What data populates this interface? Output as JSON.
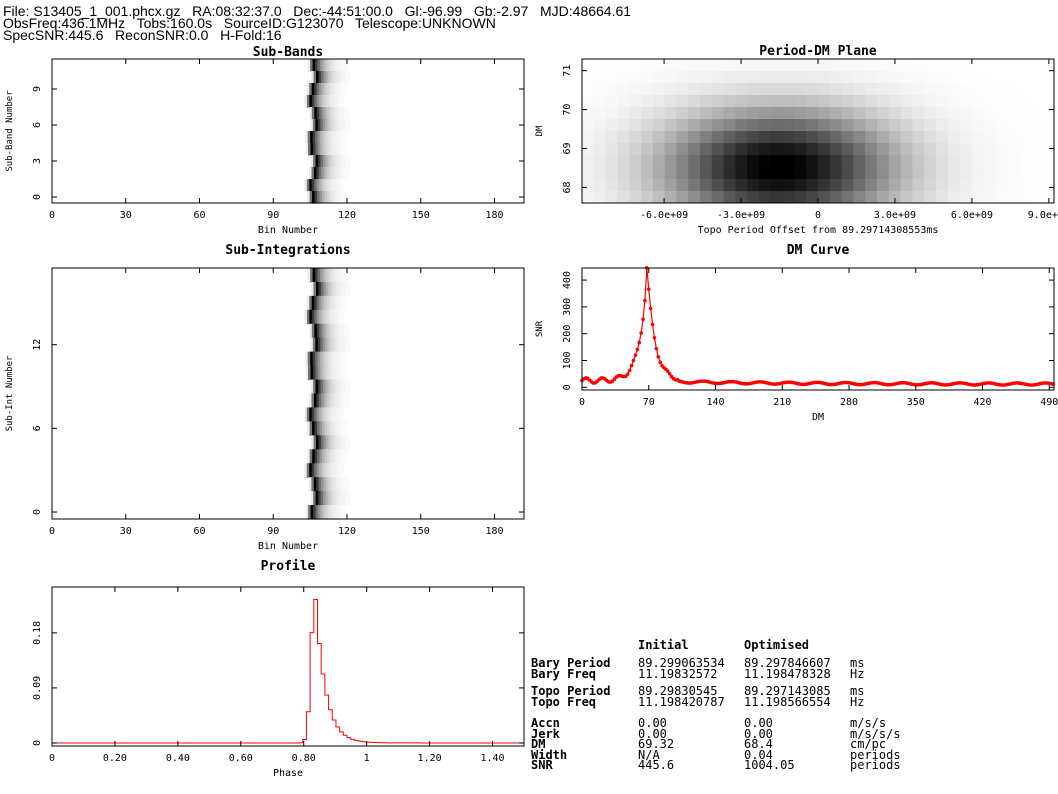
{
  "header": {
    "line1": "File: S13405_1_001.phcx.gz   RA:08:32:37.0   Dec:-44:51:00.0   Gl:-96.99   Gb:-2.97   MJD:48664.61",
    "line2": "ObsFreq:436.1MHz   Tobs:160.0s   SourceID:G123070   Telescope:UNKNOWN",
    "line3": "SpecSNR:445.6   ReconSNR:0.0   H-Fold:16"
  },
  "chart_data": [
    {
      "type": "heatmap",
      "title": "Sub-Bands",
      "xlabel": "Bin Number",
      "ylabel": "Sub-Band Number",
      "xlim": [
        0,
        192
      ],
      "ylim": [
        -0.5,
        11.5
      ],
      "xticks": [
        "0",
        "30",
        "60",
        "90",
        "120",
        "150",
        "180"
      ],
      "yticks": [
        "0",
        "3",
        "6",
        "9"
      ],
      "pulse_center_bin": 106,
      "grid": false
    },
    {
      "type": "heatmap",
      "title": "Sub-Integrations",
      "xlabel": "Bin Number",
      "ylabel": "Sub-Int Number",
      "xlim": [
        0,
        192
      ],
      "ylim": [
        -0.5,
        17.5
      ],
      "xticks": [
        "0",
        "30",
        "60",
        "90",
        "120",
        "150",
        "180"
      ],
      "yticks": [
        "0",
        "6",
        "12"
      ],
      "pulse_center_bin": 106,
      "grid": false
    },
    {
      "type": "line",
      "title": "Profile",
      "xlabel": "Phase",
      "ylabel": "",
      "xlim": [
        0,
        1.5
      ],
      "ylim": [
        -0.005,
        0.255
      ],
      "xticks": [
        "0",
        "0.20",
        "0.40",
        "0.60",
        "0.80",
        "1",
        "1.20",
        "1.40"
      ],
      "yticks": [
        "0",
        "0.09",
        "0.18"
      ],
      "peak_phase": 0.83,
      "peak_value": 0.25,
      "grid": false
    },
    {
      "type": "heatmap",
      "title": "Period-DM Plane",
      "xlabel": "Topo Period Offset from 89.29714308553ms",
      "ylabel": "DM",
      "xlim": [
        -9200000000.0,
        9200000000.0
      ],
      "ylim": [
        67.6,
        71.3
      ],
      "xticks": [
        "-6.0e+09",
        "-3.0e+09",
        "0",
        "3.0e+09",
        "6.0e+09",
        "9.0e+09"
      ],
      "yticks": [
        "68",
        "69",
        "70",
        "71"
      ],
      "peak_offset": -1500000000.0,
      "peak_dm": 68.5,
      "grid": false
    },
    {
      "type": "line",
      "title": "DM Curve",
      "xlabel": "DM",
      "ylabel": "SNR",
      "xlim": [
        0,
        495
      ],
      "ylim": [
        -10,
        445
      ],
      "xticks": [
        "0",
        "70",
        "140",
        "210",
        "280",
        "350",
        "420",
        "490"
      ],
      "yticks": [
        "0",
        "100",
        "200",
        "300",
        "400"
      ],
      "peak_dm": 68.4,
      "peak_snr": 445.6,
      "color": "#ff0000",
      "grid": false
    }
  ],
  "table": {
    "header_initial": "Initial",
    "header_optimised": "Optimised",
    "rows": [
      {
        "label": "Bary Period",
        "initial": "89.299063534",
        "optimised": "89.297846607",
        "unit": "ms"
      },
      {
        "label": "Bary Freq",
        "initial": "11.19832572",
        "optimised": "11.198478328",
        "unit": "Hz"
      },
      {
        "label": "Topo Period",
        "initial": "89.29830545",
        "optimised": "89.297143085",
        "unit": "ms"
      },
      {
        "label": "Topo Freq",
        "initial": "11.198420787",
        "optimised": "11.198566554",
        "unit": "Hz"
      },
      {
        "label": "Accn",
        "initial": "0.00",
        "optimised": "0.00",
        "unit": "m/s/s"
      },
      {
        "label": "Jerk",
        "initial": "0.00",
        "optimised": "0.00",
        "unit": "m/s/s/s"
      },
      {
        "label": "DM",
        "initial": "69.32",
        "optimised": "68.4",
        "unit": "cm/pc"
      },
      {
        "label": "Width",
        "initial": "N/A",
        "optimised": "0.04",
        "unit": "periods"
      },
      {
        "label": "SNR",
        "initial": "445.6",
        "optimised": "1004.05",
        "unit": "periods"
      }
    ]
  }
}
